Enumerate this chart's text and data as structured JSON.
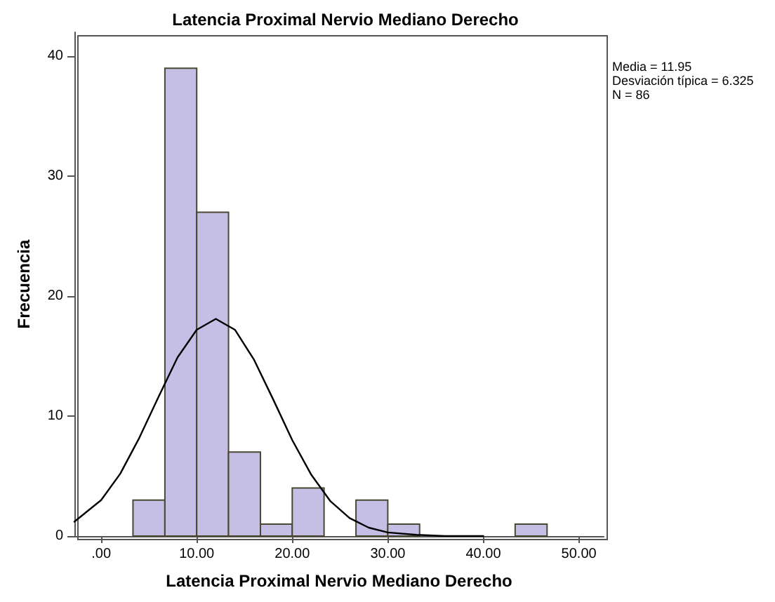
{
  "chart_data": {
    "type": "histogram",
    "title": "Latencia Proximal Nervio Mediano Derecho",
    "xlabel": "Latencia Proximal Nervio Mediano Derecho",
    "ylabel": "Frecuencia",
    "annotations": [
      "Media = 11.95",
      "Desviación típica = 6.325",
      "N = 86"
    ],
    "series": [
      {
        "color": "#c5bfe6",
        "bins": [
          3.33,
          6.67,
          10,
          13.33,
          16.67,
          20,
          23.33,
          26.67,
          30,
          33.33,
          36.67,
          40,
          43.33,
          46.67
        ],
        "values": [
          3,
          39,
          27,
          7,
          1,
          4,
          0,
          3,
          1,
          0,
          0,
          0,
          1
        ]
      },
      {
        "type": "line",
        "color": "#000000",
        "x": [
          -2.8,
          0,
          2,
          4,
          6,
          8,
          10,
          12,
          14,
          16,
          18,
          20,
          22,
          24,
          26,
          28,
          30,
          33,
          36,
          40
        ],
        "values": [
          1.2,
          3.0,
          5.2,
          8.2,
          11.6,
          14.9,
          17.2,
          18.1,
          17.2,
          14.7,
          11.4,
          8.0,
          5.1,
          2.9,
          1.5,
          0.7,
          0.3,
          0.1,
          0,
          0
        ]
      }
    ],
    "xlim": [
      -2.8,
      52.6
    ],
    "xticks": [
      {
        "value": 0,
        "label": ".00"
      },
      {
        "value": 10,
        "label": "10.00"
      },
      {
        "value": 20,
        "label": "20.00"
      },
      {
        "value": 30,
        "label": "30.00"
      },
      {
        "value": 40,
        "label": "40.00"
      },
      {
        "value": 50,
        "label": "50.00"
      }
    ],
    "ylim": [
      0,
      42
    ],
    "yticks": [
      0,
      10,
      20,
      30,
      40
    ],
    "grid": false,
    "marker": "none",
    "line_style": "solid"
  }
}
